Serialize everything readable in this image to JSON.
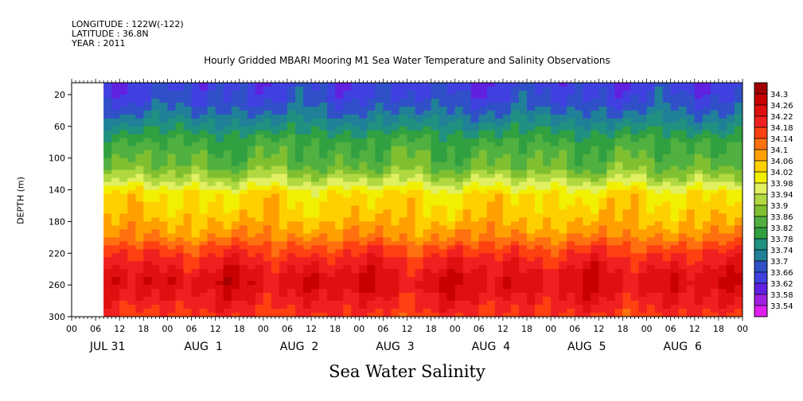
{
  "header": {
    "longitude": "LONGITUDE : 122W(-122)",
    "latitude": "LATITUDE : 36.8N",
    "year": "YEAR : 2011"
  },
  "title": "Hourly Gridded MBARI Mooring M1 Sea Water Temperature and Salinity Observations",
  "caption": "Sea Water Salinity",
  "chart_data": {
    "type": "heatmap",
    "variable": "Sea Water Salinity",
    "xlabel": "",
    "ylabel": "DEPTH (m)",
    "x_range_hours": [
      0,
      168
    ],
    "data_start_hour": 8,
    "hour_tick_labels": [
      "00",
      "06",
      "12",
      "18",
      "00",
      "06",
      "12",
      "18",
      "00",
      "06",
      "12",
      "18",
      "00",
      "06",
      "12",
      "18",
      "00",
      "06",
      "12",
      "18",
      "00",
      "06",
      "12",
      "18",
      "00",
      "06",
      "12",
      "18",
      "00"
    ],
    "date_labels": [
      "JUL 31",
      "AUG  1",
      "AUG  2",
      "AUG  3",
      "AUG  4",
      "AUG  5",
      "AUG  6"
    ],
    "y_ticks": [
      20,
      60,
      100,
      140,
      180,
      220,
      260,
      300
    ],
    "y_range": [
      5,
      300
    ],
    "y_inverted": true,
    "colorbar_levels": [
      "34.3",
      "34.26",
      "34.22",
      "34.18",
      "34.14",
      "34.1",
      "34.06",
      "34.02",
      "33.98",
      "33.94",
      "33.9",
      "33.86",
      "33.82",
      "33.78",
      "33.74",
      "33.7",
      "33.66",
      "33.62",
      "33.58",
      "33.54"
    ],
    "colorbar_colors": [
      "#a00000",
      "#c80000",
      "#e01010",
      "#f02020",
      "#ff4010",
      "#ff7010",
      "#ffa000",
      "#ffd000",
      "#f0f000",
      "#e0f060",
      "#b0d840",
      "#80c030",
      "#50b040",
      "#30a040",
      "#209080",
      "#208098",
      "#3050c8",
      "#4040e0",
      "#6020e0",
      "#a020e0",
      "#e020f0"
    ],
    "depth_profile": [
      {
        "depth": 5,
        "salinity": 33.64
      },
      {
        "depth": 30,
        "salinity": 33.67
      },
      {
        "depth": 55,
        "salinity": 33.74
      },
      {
        "depth": 80,
        "salinity": 33.82
      },
      {
        "depth": 110,
        "salinity": 33.86
      },
      {
        "depth": 130,
        "salinity": 33.94
      },
      {
        "depth": 145,
        "salinity": 34.02
      },
      {
        "depth": 175,
        "salinity": 34.05
      },
      {
        "depth": 200,
        "salinity": 34.1
      },
      {
        "depth": 215,
        "salinity": 34.16
      },
      {
        "depth": 235,
        "salinity": 34.21
      },
      {
        "depth": 255,
        "salinity": 34.25
      },
      {
        "depth": 275,
        "salinity": 34.22
      },
      {
        "depth": 300,
        "salinity": 34.17
      }
    ]
  }
}
